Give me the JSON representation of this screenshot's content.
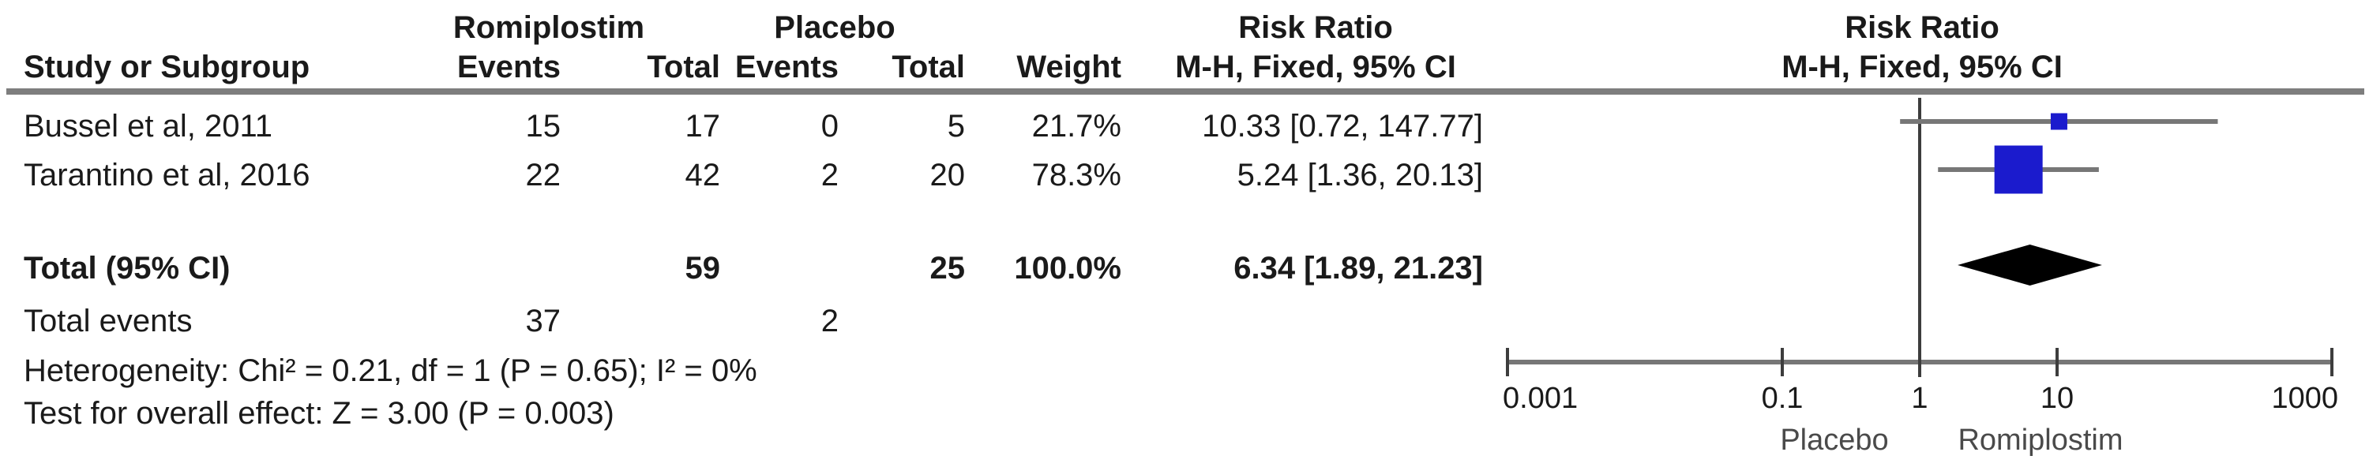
{
  "header": {
    "group_experimental": "Romiplostim",
    "group_control": "Placebo",
    "effect_title": "Risk Ratio",
    "effect_method": "M-H, Fixed, 95% CI",
    "col_study": "Study or Subgroup",
    "col_events": "Events",
    "col_total": "Total",
    "col_weight": "Weight"
  },
  "footer": {
    "heterogeneity": "Heterogeneity: Chi² = 0.21, df = 1 (P = 0.65); I² = 0%",
    "overall_effect": "Test for overall effect: Z = 3.00 (P = 0.003)"
  },
  "chart_data": {
    "type": "forest",
    "effect_measure": "Risk Ratio",
    "method": "M-H, Fixed, 95% CI",
    "groups": [
      "Romiplostim",
      "Placebo"
    ],
    "studies": [
      {
        "name": "Bussel et al, 2011",
        "exp_events": 15,
        "exp_total": 17,
        "ctl_events": 0,
        "ctl_total": 5,
        "weight": "21.7%",
        "weight_pct": 21.7,
        "rr": 10.33,
        "ci_low": 0.72,
        "ci_high": 147.77,
        "ci_text": "10.33 [0.72, 147.77]"
      },
      {
        "name": "Tarantino et al, 2016",
        "exp_events": 22,
        "exp_total": 42,
        "ctl_events": 2,
        "ctl_total": 20,
        "weight": "78.3%",
        "weight_pct": 78.3,
        "rr": 5.24,
        "ci_low": 1.36,
        "ci_high": 20.13,
        "ci_text": "5.24 [1.36, 20.13]"
      }
    ],
    "total": {
      "label": "Total (95% CI)",
      "exp_total": 59,
      "ctl_total": 25,
      "weight": "100.0%",
      "rr": 6.34,
      "ci_low": 1.89,
      "ci_high": 21.23,
      "ci_text": "6.34 [1.89, 21.23]"
    },
    "total_events": {
      "label": "Total events",
      "exp_events": 37,
      "ctl_events": 2
    },
    "axis": {
      "scale": "log",
      "xlim": [
        0.001,
        1000
      ],
      "ticks": [
        0.001,
        0.1,
        1,
        10,
        1000
      ],
      "tick_labels": [
        "0.001",
        "0.1",
        "1",
        "10",
        "1000"
      ],
      "left_label": "Placebo",
      "right_label": "Romiplostim"
    },
    "colors": {
      "marker": "#1b1bcd",
      "diamond": "#000000",
      "ci_line": "#777777",
      "axis_line": "#777777",
      "tick_line": "#3d3d3d",
      "center_line": "#3d3d3d",
      "tick_label": "#1a1a1a",
      "side_label": "#4a4a4a"
    }
  }
}
